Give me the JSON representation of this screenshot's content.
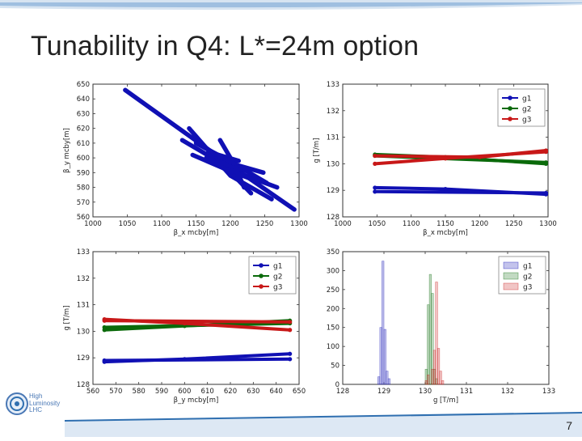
{
  "slide": {
    "title": "Tunability in Q4: L*=24m option",
    "page_number": "7",
    "logo": {
      "line1": "High",
      "line2": "Luminosity",
      "line3": "LHC"
    }
  },
  "colors": {
    "g1": "#1010b4",
    "g2": "#0a6a0a",
    "g3": "#c81818",
    "accent": "#2f6fb0"
  },
  "chart_data": [
    {
      "id": "top-left",
      "type": "scatter",
      "xlabel": "β_x mcby[m]",
      "ylabel": "β_y mcby[m]",
      "xlim": [
        1000,
        1300
      ],
      "ylim": [
        560,
        650
      ],
      "xticks": [
        1000,
        1050,
        1100,
        1150,
        1200,
        1250,
        1300
      ],
      "yticks": [
        560,
        570,
        580,
        590,
        600,
        610,
        620,
        630,
        640,
        650
      ],
      "series": [
        {
          "color": "g1",
          "lines": [
            [
              [
                1047,
                646
              ],
              [
                1200,
                595
              ],
              [
                1293,
                565
              ]
            ],
            [
              [
                1140,
                620
              ],
              [
                1200,
                588
              ],
              [
                1260,
                572
              ]
            ],
            [
              [
                1130,
                612
              ],
              [
                1210,
                590
              ],
              [
                1268,
                580
              ]
            ],
            [
              [
                1165,
                600
              ],
              [
                1220,
                592
              ],
              [
                1253,
                583
              ]
            ],
            [
              [
                1145,
                602
              ],
              [
                1195,
                592
              ],
              [
                1240,
                584
              ]
            ],
            [
              [
                1168,
                604
              ],
              [
                1212,
                598
              ]
            ],
            [
              [
                1150,
                610
              ],
              [
                1210,
                595
              ],
              [
                1248,
                590
              ]
            ],
            [
              [
                1175,
                598
              ],
              [
                1205,
                588
              ],
              [
                1230,
                576
              ]
            ],
            [
              [
                1185,
                612
              ],
              [
                1205,
                596
              ],
              [
                1220,
                580
              ]
            ]
          ]
        }
      ]
    },
    {
      "id": "top-right",
      "type": "line",
      "xlabel": "β_x mcby[m]",
      "ylabel": "g [T/m]",
      "xlim": [
        1000,
        1300
      ],
      "ylim": [
        128,
        133
      ],
      "xticks": [
        1000,
        1050,
        1100,
        1150,
        1200,
        1250,
        1300
      ],
      "yticks": [
        128,
        129,
        130,
        131,
        132,
        133
      ],
      "legend": {
        "position": "top-right",
        "entries": [
          "g1",
          "g2",
          "g3"
        ]
      },
      "series": [
        {
          "name": "g1",
          "color": "g1",
          "lines": [
            [
              [
                1047,
                129.1
              ],
              [
                1150,
                129.05
              ],
              [
                1297,
                128.85
              ]
            ],
            [
              [
                1047,
                128.95
              ],
              [
                1297,
                128.9
              ]
            ]
          ]
        },
        {
          "name": "g2",
          "color": "g2",
          "lines": [
            [
              [
                1047,
                130.35
              ],
              [
                1150,
                130.25
              ],
              [
                1297,
                130.0
              ]
            ],
            [
              [
                1047,
                130.3
              ],
              [
                1297,
                130.05
              ]
            ]
          ]
        },
        {
          "name": "g3",
          "color": "g3",
          "lines": [
            [
              [
                1047,
                130.0
              ],
              [
                1150,
                130.2
              ],
              [
                1297,
                130.45
              ]
            ],
            [
              [
                1047,
                130.3
              ],
              [
                1200,
                130.25
              ],
              [
                1297,
                130.5
              ]
            ]
          ]
        }
      ]
    },
    {
      "id": "bottom-left",
      "type": "line",
      "xlabel": "β_y mcby[m]",
      "ylabel": "g [T/m]",
      "xlim": [
        560,
        650
      ],
      "ylim": [
        128,
        133
      ],
      "xticks": [
        560,
        570,
        580,
        590,
        600,
        610,
        620,
        630,
        640,
        650
      ],
      "yticks": [
        128,
        129,
        130,
        131,
        132,
        133
      ],
      "legend": {
        "position": "top-right",
        "entries": [
          "g1",
          "g2",
          "g3"
        ]
      },
      "series": [
        {
          "name": "g1",
          "color": "g1",
          "lines": [
            [
              [
                565,
                128.85
              ],
              [
                600,
                128.95
              ],
              [
                646,
                129.15
              ]
            ],
            [
              [
                565,
                128.9
              ],
              [
                646,
                128.95
              ]
            ]
          ]
        },
        {
          "name": "g2",
          "color": "g2",
          "lines": [
            [
              [
                565,
                130.05
              ],
              [
                600,
                130.2
              ],
              [
                646,
                130.4
              ]
            ],
            [
              [
                565,
                130.15
              ],
              [
                646,
                130.3
              ]
            ]
          ]
        },
        {
          "name": "g3",
          "color": "g3",
          "lines": [
            [
              [
                565,
                130.45
              ],
              [
                600,
                130.3
              ],
              [
                646,
                130.05
              ]
            ],
            [
              [
                565,
                130.4
              ],
              [
                646,
                130.35
              ]
            ]
          ]
        }
      ]
    },
    {
      "id": "bottom-right",
      "type": "bar",
      "xlabel": "g [T/m]",
      "ylabel": "",
      "xlim": [
        128,
        133
      ],
      "ylim": [
        0,
        350
      ],
      "xticks": [
        128,
        129,
        130,
        131,
        132,
        133
      ],
      "yticks": [
        0,
        50,
        100,
        150,
        200,
        250,
        300,
        350
      ],
      "legend": {
        "position": "top-right",
        "entries": [
          "g1",
          "g2",
          "g3"
        ]
      },
      "bin_width": 0.05,
      "series": [
        {
          "name": "g1",
          "color": "g1",
          "bins": [
            [
              128.85,
              20
            ],
            [
              128.9,
              150
            ],
            [
              128.95,
              325
            ],
            [
              129.0,
              145
            ],
            [
              129.05,
              35
            ],
            [
              129.1,
              15
            ]
          ]
        },
        {
          "name": "g2",
          "color": "g2",
          "bins": [
            [
              130.0,
              40
            ],
            [
              130.05,
              210
            ],
            [
              130.1,
              290
            ],
            [
              130.15,
              240
            ],
            [
              130.2,
              40
            ],
            [
              130.25,
              15
            ]
          ]
        },
        {
          "name": "g3",
          "color": "g3",
          "bins": [
            [
              130.0,
              10
            ],
            [
              130.05,
              25
            ],
            [
              130.15,
              40
            ],
            [
              130.2,
              90
            ],
            [
              130.25,
              270
            ],
            [
              130.3,
              95
            ],
            [
              130.35,
              35
            ],
            [
              130.4,
              10
            ]
          ]
        }
      ]
    }
  ]
}
